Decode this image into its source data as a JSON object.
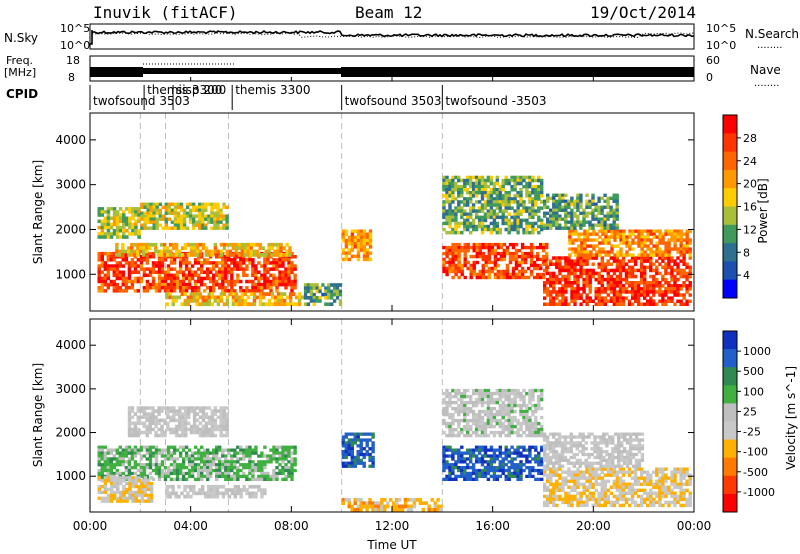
{
  "header": {
    "station": "Inuvik (fitACF)",
    "beam": "Beam 12",
    "date": "19/Oct/2014"
  },
  "top_panels": {
    "left_label_1": "N.Sky",
    "left_label_2a": "Freq.",
    "left_label_2b": "[MHz]",
    "left_label_3": "CPID",
    "right_label_1": "N.Search",
    "right_label_2": "Nave",
    "right_dots": "........",
    "nsky_ticks": [
      "10^5",
      "10^0"
    ],
    "nsearch_ticks": [
      "10^5",
      "10^0"
    ],
    "freq_ticks": [
      "18",
      "8"
    ],
    "nave_ticks": [
      "60",
      "0"
    ]
  },
  "cpid_segments": [
    {
      "label": "twofsound 3503",
      "start_h": 0.0
    },
    {
      "label": "themis 3300",
      "start_h": 2.15
    },
    {
      "label": "sisp 200",
      "start_h": 3.3
    },
    {
      "label": "themis 3300",
      "start_h": 5.65
    },
    {
      "label": "twofsound 3503",
      "start_h": 10.0
    },
    {
      "label": "twofsound -3503",
      "start_h": 14.0
    }
  ],
  "x_axis": {
    "label": "Time UT",
    "ticks": [
      "00:00",
      "04:00",
      "08:00",
      "12:00",
      "16:00",
      "20:00",
      "00:00"
    ]
  },
  "colors": {
    "power_scale": [
      "#ff0000",
      "#ff3300",
      "#ff6600",
      "#ff9900",
      "#ffcc00",
      "#a9bf3a",
      "#3f9a5c",
      "#2f6f8f",
      "#1d4fb0",
      "#0000ff"
    ],
    "velocity_scale": [
      "#1030c0",
      "#2060c8",
      "#2f8a4f",
      "#40b040",
      "#bfbfbf",
      "#c8c8c8",
      "#ffb000",
      "#ff7a00",
      "#ff3a00",
      "#ff0000"
    ]
  },
  "chart_data": [
    {
      "type": "heatmap",
      "title": "Power",
      "ylabel": "Slant Range [km]",
      "xlabel": "Time UT",
      "y_ticks": [
        "1000",
        "2000",
        "3000",
        "4000"
      ],
      "ylim": [
        180,
        4600
      ],
      "xlim_hours": [
        0,
        24
      ],
      "colorbar": {
        "label": "Power [dB]",
        "ticks": [
          "4",
          "8",
          "12",
          "16",
          "20",
          "24",
          "28"
        ],
        "range": [
          0,
          30
        ]
      },
      "regions": [
        {
          "t0": 0.3,
          "t1": 8.2,
          "r0": 600,
          "r1": 1500,
          "value": 26
        },
        {
          "t0": 1.0,
          "t1": 8.0,
          "r0": 1400,
          "r1": 1700,
          "value": 18
        },
        {
          "t0": 0.3,
          "t1": 2.0,
          "r0": 1800,
          "r1": 2500,
          "value": 14
        },
        {
          "t0": 2.0,
          "t1": 5.5,
          "r0": 2000,
          "r1": 2600,
          "value": 15
        },
        {
          "t0": 3.0,
          "t1": 8.5,
          "r0": 300,
          "r1": 600,
          "value": 18
        },
        {
          "t0": 8.5,
          "t1": 10.0,
          "r0": 300,
          "r1": 800,
          "value": 10
        },
        {
          "t0": 10.0,
          "t1": 11.2,
          "r0": 1300,
          "r1": 2000,
          "value": 20
        },
        {
          "t0": 14.0,
          "t1": 18.2,
          "r0": 900,
          "r1": 1700,
          "value": 26
        },
        {
          "t0": 14.0,
          "t1": 18.0,
          "r0": 1900,
          "r1": 3200,
          "value": 11
        },
        {
          "t0": 18.0,
          "t1": 23.9,
          "r0": 300,
          "r1": 1400,
          "value": 27
        },
        {
          "t0": 19.0,
          "t1": 23.9,
          "r0": 1400,
          "r1": 2000,
          "value": 21
        },
        {
          "t0": 18.0,
          "t1": 21.0,
          "r0": 2000,
          "r1": 2800,
          "value": 10
        }
      ]
    },
    {
      "type": "heatmap",
      "title": "Velocity",
      "ylabel": "Slant Range [km]",
      "xlabel": "Time UT",
      "y_ticks": [
        "1000",
        "2000",
        "3000",
        "4000"
      ],
      "ylim": [
        180,
        4600
      ],
      "xlim_hours": [
        0,
        24
      ],
      "colorbar": {
        "label": "Velocity [m s^-1]",
        "ticks": [
          "1000",
          "500",
          "100",
          "25",
          "-25",
          "-100",
          "-500",
          "-1000"
        ],
        "range": [
          -1000,
          1000
        ]
      },
      "regions": [
        {
          "t0": 0.3,
          "t1": 8.2,
          "r0": 900,
          "r1": 1700,
          "value": 300
        },
        {
          "t0": 1.5,
          "t1": 5.5,
          "r0": 1900,
          "r1": 2600,
          "value": 0
        },
        {
          "t0": 3.0,
          "t1": 7.0,
          "r0": 500,
          "r1": 800,
          "value": 0
        },
        {
          "t0": 0.3,
          "t1": 2.5,
          "r0": 400,
          "r1": 1000,
          "value": -150
        },
        {
          "t0": 10.0,
          "t1": 11.3,
          "r0": 1200,
          "r1": 2000,
          "value": 800
        },
        {
          "t0": 14.0,
          "t1": 18.0,
          "r0": 900,
          "r1": 1700,
          "value": 800
        },
        {
          "t0": 14.0,
          "t1": 18.0,
          "r0": 1900,
          "r1": 3000,
          "value": 60
        },
        {
          "t0": 18.0,
          "t1": 23.9,
          "r0": 300,
          "r1": 1200,
          "value": -200
        },
        {
          "t0": 18.0,
          "t1": 22.0,
          "r0": 1200,
          "r1": 2000,
          "value": 0
        },
        {
          "t0": 10.0,
          "t1": 14.0,
          "r0": 200,
          "r1": 500,
          "value": -300
        }
      ]
    }
  ]
}
